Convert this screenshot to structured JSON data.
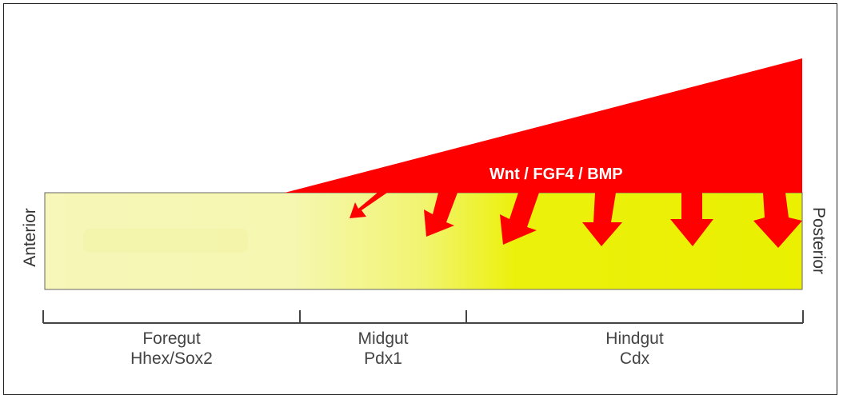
{
  "colors": {
    "gut_pale": "#f5f6b0",
    "gut_bright": "#eef20a",
    "signal_red": "#ff0000",
    "bracket": "#444444"
  },
  "signal_label": "Wnt / FGF4 / BMP",
  "axis": {
    "anterior": "Anterior",
    "posterior": "Posterior"
  },
  "regions": [
    {
      "name": "Foregut",
      "marker": "Hhex/Sox2"
    },
    {
      "name": "Midgut",
      "marker": "Pdx1"
    },
    {
      "name": "Hindgut",
      "marker": "Cdx"
    }
  ]
}
